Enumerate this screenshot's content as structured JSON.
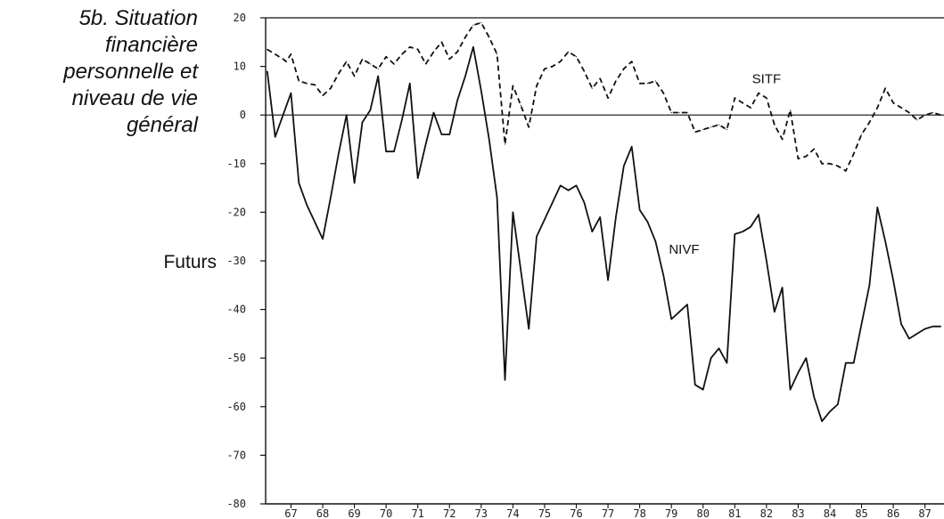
{
  "figure": {
    "title_lines": [
      "5b. Situation",
      "financière",
      "personnelle et",
      "niveau de vie",
      "général"
    ],
    "side_label": "Futurs"
  },
  "chart_data": {
    "type": "line",
    "title": "5b. Situation financière personnelle et niveau de vie général",
    "ylabel": "Futurs",
    "xlabel": "",
    "ylim": [
      -80,
      20
    ],
    "yticks": [
      20,
      10,
      0,
      -10,
      -20,
      -30,
      -40,
      -50,
      -60,
      -70,
      -80
    ],
    "xlim": [
      66.2,
      87.6
    ],
    "xticks": [
      "67",
      "68",
      "69",
      "70",
      "71",
      "72",
      "73",
      "74",
      "75",
      "76",
      "77",
      "78",
      "79",
      "80",
      "81",
      "82",
      "83",
      "84",
      "85",
      "86",
      "87"
    ],
    "zero_line": true,
    "grid": false,
    "series": [
      {
        "name": "SITF",
        "style": "dashed",
        "color": "#111111",
        "x": [
          66.25,
          66.5,
          66.75,
          66.85,
          67.0,
          67.25,
          67.5,
          67.75,
          68.0,
          68.25,
          68.5,
          68.75,
          69.0,
          69.25,
          69.5,
          69.75,
          70.0,
          70.25,
          70.5,
          70.75,
          71.0,
          71.25,
          71.5,
          71.75,
          72.0,
          72.25,
          72.5,
          72.75,
          73.0,
          73.25,
          73.5,
          73.75,
          74.0,
          74.25,
          74.5,
          74.75,
          75.0,
          75.25,
          75.5,
          75.75,
          76.0,
          76.25,
          76.5,
          76.75,
          77.0,
          77.25,
          77.5,
          77.75,
          78.0,
          78.25,
          78.5,
          78.75,
          79.0,
          79.25,
          79.5,
          79.75,
          80.0,
          80.25,
          80.5,
          80.75,
          81.0,
          81.25,
          81.5,
          81.75,
          82.0,
          82.25,
          82.5,
          82.75,
          83.0,
          83.25,
          83.5,
          83.75,
          84.0,
          84.25,
          84.5,
          84.75,
          85.0,
          85.25,
          85.5,
          85.75,
          86.0,
          86.25,
          86.5,
          86.75,
          87.0,
          87.25,
          87.5
        ],
        "y": [
          13.5,
          12.5,
          11.5,
          11.0,
          12.5,
          7.0,
          6.5,
          6.2,
          4.0,
          5.5,
          8.5,
          11.0,
          8.0,
          11.5,
          10.5,
          9.5,
          12.0,
          10.5,
          12.5,
          14.0,
          13.5,
          10.5,
          13.0,
          15.0,
          11.5,
          13.0,
          16.0,
          18.5,
          19.0,
          16.0,
          12.5,
          -6.0,
          6.0,
          2.0,
          -2.5,
          6.0,
          9.5,
          10.0,
          11.0,
          13.0,
          12.0,
          9.0,
          5.5,
          7.5,
          3.5,
          7.0,
          9.5,
          11.0,
          6.5,
          6.5,
          7.0,
          4.5,
          0.5,
          0.5,
          0.5,
          -3.5,
          -3.0,
          -2.5,
          -2.0,
          -3.0,
          3.5,
          2.5,
          1.5,
          4.5,
          3.5,
          -2.0,
          -5.0,
          1.0,
          -9.0,
          -8.5,
          -7.0,
          -10.0,
          -10.0,
          -10.5,
          -11.5,
          -8.0,
          -4.0,
          -1.5,
          1.5,
          5.5,
          2.5,
          1.5,
          0.5,
          -1.0,
          0.0,
          0.5,
          0.0
        ]
      },
      {
        "name": "NIVF",
        "style": "solid",
        "color": "#111111",
        "x": [
          66.25,
          66.5,
          67.0,
          67.25,
          67.5,
          67.75,
          68.0,
          68.25,
          68.5,
          68.75,
          69.0,
          69.25,
          69.5,
          69.75,
          70.0,
          70.25,
          70.5,
          70.75,
          71.0,
          71.25,
          71.5,
          71.75,
          72.0,
          72.25,
          72.5,
          72.75,
          73.0,
          73.25,
          73.5,
          73.75,
          74.0,
          74.25,
          74.5,
          74.75,
          75.0,
          75.25,
          75.5,
          75.75,
          76.0,
          76.25,
          76.5,
          76.75,
          77.0,
          77.25,
          77.5,
          77.75,
          78.0,
          78.25,
          78.5,
          78.75,
          79.0,
          79.25,
          79.5,
          79.75,
          80.0,
          80.25,
          80.5,
          80.75,
          81.0,
          81.25,
          81.5,
          81.75,
          82.0,
          82.25,
          82.5,
          82.75,
          83.0,
          83.25,
          83.5,
          83.75,
          84.0,
          84.25,
          84.5,
          84.75,
          85.0,
          85.25,
          85.5,
          85.75,
          86.0,
          86.25,
          86.5,
          86.75,
          87.0,
          87.25,
          87.5
        ],
        "y": [
          9.0,
          -4.5,
          4.5,
          -14.0,
          -18.5,
          -22.0,
          -25.5,
          -17.0,
          -8.0,
          0.0,
          -14.0,
          -1.5,
          1.0,
          8.0,
          -7.5,
          -7.5,
          -1.0,
          6.5,
          -13.0,
          -6.0,
          0.5,
          -4.0,
          -4.0,
          3.0,
          8.0,
          14.0,
          5.0,
          -5.0,
          -17.0,
          -54.5,
          -20.0,
          -32.0,
          -44.0,
          -25.0,
          -21.5,
          -18.0,
          -14.5,
          -15.5,
          -14.5,
          -18.0,
          -24.0,
          -21.0,
          -34.0,
          -21.0,
          -10.5,
          -6.5,
          -19.5,
          -22.0,
          -26.0,
          -33.0,
          -42.0,
          -40.5,
          -39.0,
          -55.5,
          -56.5,
          -50.0,
          -48.0,
          -51.0,
          -24.5,
          -24.0,
          -23.0,
          -20.5,
          -30.0,
          -40.5,
          -35.5,
          -56.5,
          -53.0,
          -50.0,
          -58.0,
          -63.0,
          -61.0,
          -59.5,
          -51.0,
          -51.0,
          -43.0,
          -35.0,
          -19.0,
          -26.0,
          -34.0,
          -43.0,
          -46.0,
          -45.0,
          -44.0,
          -43.5,
          -43.5
        ]
      }
    ]
  }
}
